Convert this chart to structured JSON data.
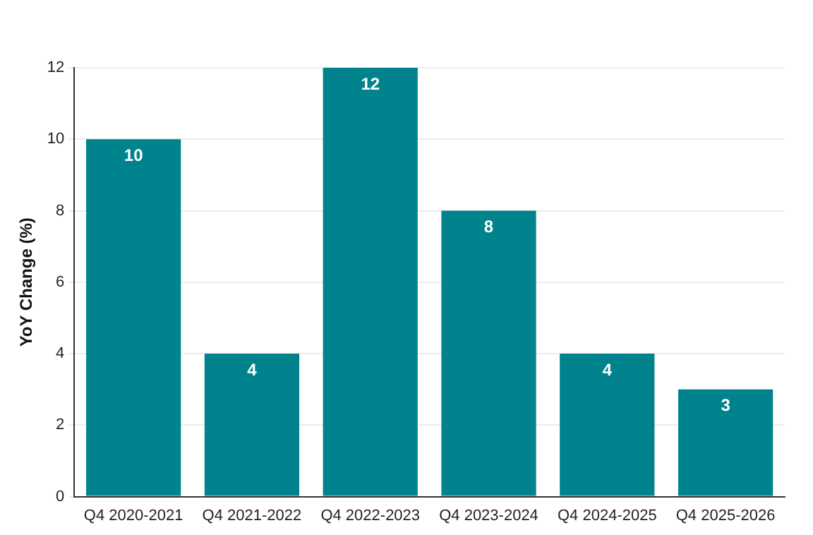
{
  "chart_data": {
    "type": "bar",
    "ylabel": "YoY Change (%)",
    "categories": [
      "Q4 2020-2021",
      "Q4 2021-2022",
      "Q4 2022-2023",
      "Q4 2023-2024",
      "Q4 2024-2025",
      "Q4 2025-2026"
    ],
    "values": [
      10,
      4,
      12,
      8,
      4,
      3
    ],
    "color": "#00838c",
    "ylim": [
      0,
      12
    ],
    "yticks": [
      0,
      2,
      4,
      6,
      8,
      10,
      12
    ],
    "grid": "y",
    "data_labels": true
  }
}
